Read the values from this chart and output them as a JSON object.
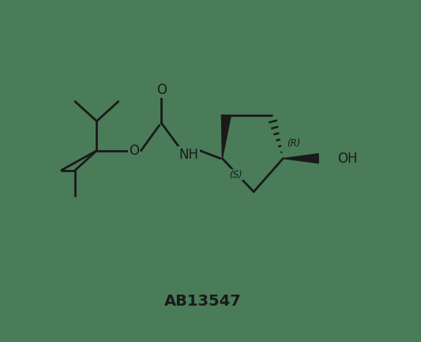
{
  "background_color": "#4a7c59",
  "line_color": "#1a1a1a",
  "line_width": 2.0,
  "text_color": "#1a1a1a",
  "label_fontsize": 12,
  "id_fontsize": 13,
  "id_text": "AB13547",
  "label_O_carbonyl": "O",
  "label_NH": "NH",
  "label_OH": "OH",
  "label_S": "(S)",
  "label_R": "(R)"
}
